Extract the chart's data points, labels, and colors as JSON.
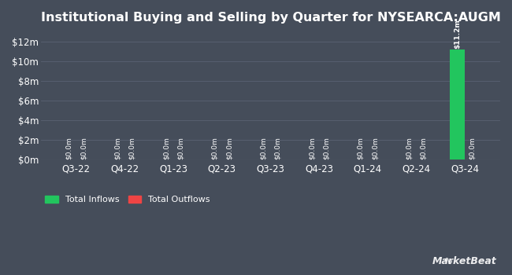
{
  "title": "Institutional Buying and Selling by Quarter for NYSEARCA:AUGM",
  "quarters": [
    "Q3-22",
    "Q4-22",
    "Q1-23",
    "Q2-23",
    "Q3-23",
    "Q4-23",
    "Q1-24",
    "Q2-24",
    "Q3-24"
  ],
  "inflows": [
    0.0,
    0.0,
    0.0,
    0.0,
    0.0,
    0.0,
    0.0,
    0.0,
    11200000
  ],
  "outflows": [
    0.0,
    0.0,
    0.0,
    0.0,
    0.0,
    0.0,
    0.0,
    0.0,
    0.0
  ],
  "inflow_labels": [
    "$0.0m",
    "$0.0m",
    "$0.0m",
    "$0.0m",
    "$0.0m",
    "$0.0m",
    "$0.0m",
    "$0.0m",
    "$11.2m"
  ],
  "outflow_labels": [
    "$0.0m",
    "$0.0m",
    "$0.0m",
    "$0.0m",
    "$0.0m",
    "$0.0m",
    "$0.0m",
    "$0.0m",
    "$0.0m"
  ],
  "inflow_color": "#22c55e",
  "outflow_color": "#ef4444",
  "background_color": "#454d5a",
  "plot_bg_color": "#454d5a",
  "text_color": "#ffffff",
  "grid_color": "#5a6272",
  "ylim": [
    0,
    13000000
  ],
  "yticks": [
    0,
    2000000,
    4000000,
    6000000,
    8000000,
    10000000,
    12000000
  ],
  "ytick_labels": [
    "$0m",
    "$2m",
    "$4m",
    "$6m",
    "$8m",
    "$10m",
    "$12m"
  ],
  "title_fontsize": 11.5,
  "tick_fontsize": 8.5,
  "label_fontsize": 6.5,
  "legend_fontsize": 8,
  "bar_width": 0.3
}
